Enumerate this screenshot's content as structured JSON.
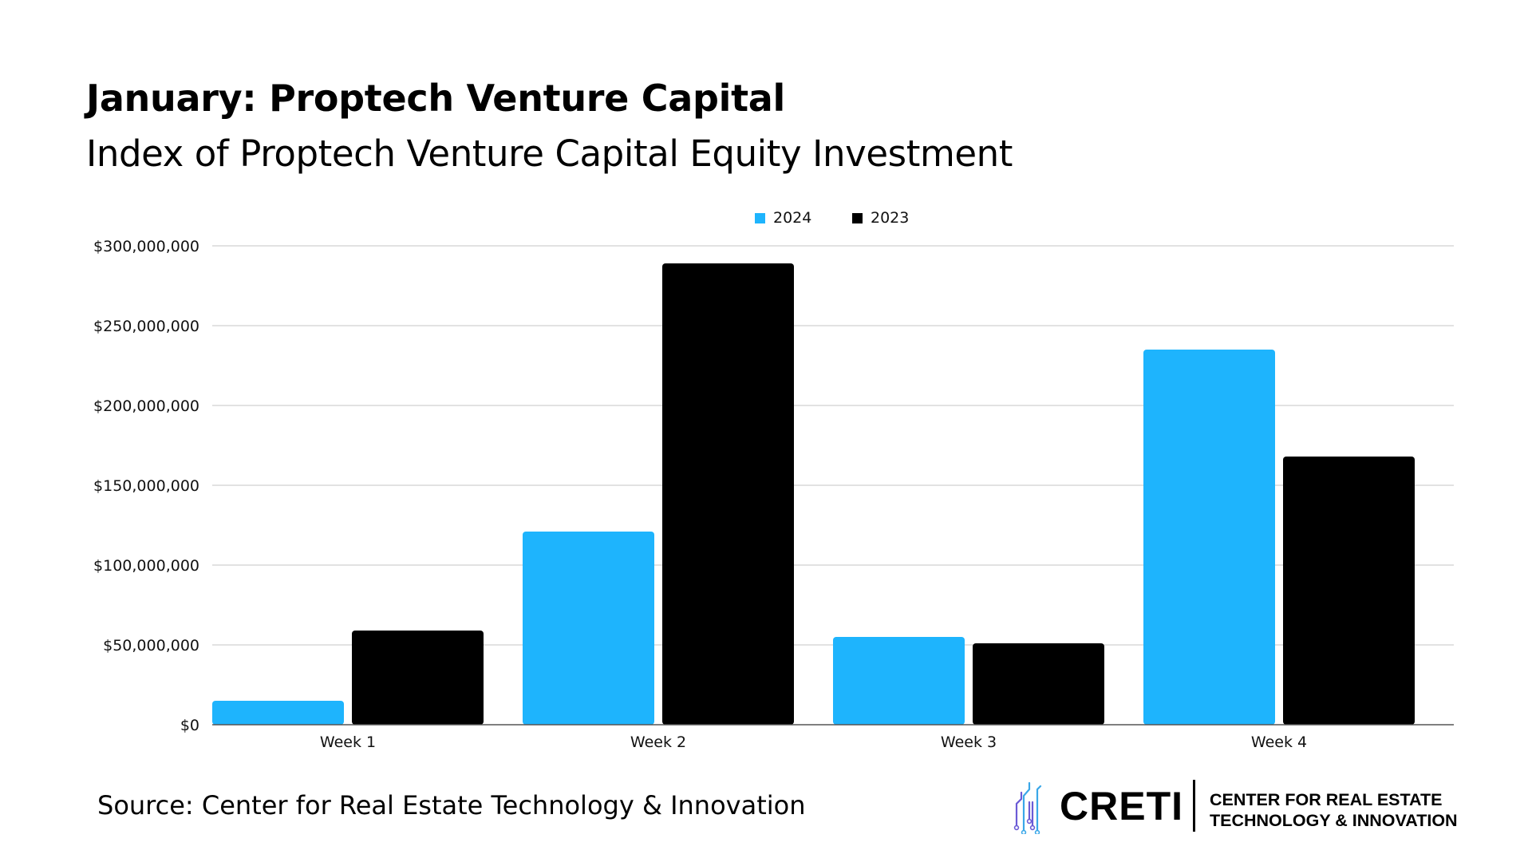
{
  "header": {
    "title": "January: Proptech Venture Capital",
    "subtitle": "Index of Proptech Venture Capital Equity Investment"
  },
  "footer": {
    "source": "Source: Center for Real Estate Technology & Innovation",
    "brand_name": "CRETI",
    "brand_tagline_1": "CENTER FOR REAL ESTATE",
    "brand_tagline_2": "TECHNOLOGY & INNOVATION"
  },
  "colors": {
    "series_2024": "#1EB4FD",
    "series_2023": "#000000",
    "grid": "#d8d8d8",
    "logo": [
      "#6B5BD6",
      "#3AA7E8"
    ]
  },
  "chart_data": {
    "type": "bar",
    "title": "January: Proptech Venture Capital",
    "subtitle": "Index of Proptech Venture Capital Equity Investment",
    "categories": [
      "Week 1",
      "Week 2",
      "Week 3",
      "Week 4"
    ],
    "series": [
      {
        "name": "2024",
        "values": [
          15000000,
          121000000,
          55000000,
          235000000
        ]
      },
      {
        "name": "2023",
        "values": [
          59000000,
          289000000,
          51000000,
          168000000
        ]
      }
    ],
    "ylim": [
      0,
      300000000
    ],
    "yticks": [
      0,
      50000000,
      100000000,
      150000000,
      200000000,
      250000000,
      300000000
    ],
    "ytick_labels": [
      "$0",
      "$50,000,000",
      "$100,000,000",
      "$150,000,000",
      "$200,000,000",
      "$250,000,000",
      "$300,000,000"
    ],
    "xlabel": "",
    "ylabel": "",
    "grid": true,
    "legend_position": "top-center"
  }
}
